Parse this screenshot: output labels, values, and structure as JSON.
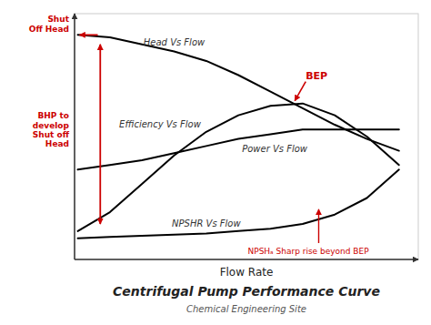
{
  "chart_data": {
    "type": "line",
    "title": "Centrifugal Pump Performance Curve",
    "subtitle": "Chemical Engineering Site",
    "x_label": "Flow Rate",
    "x": [
      0.0,
      0.1,
      0.2,
      0.3,
      0.4,
      0.5,
      0.6,
      0.7,
      0.8,
      0.9,
      1.0
    ],
    "series": [
      {
        "name": "Head Vs Flow",
        "color": "#000000",
        "values": [
          0.93,
          0.92,
          0.89,
          0.86,
          0.82,
          0.76,
          0.69,
          0.62,
          0.55,
          0.49,
          0.44
        ]
      },
      {
        "name": "Efficiency Vs Flow",
        "color": "#000000",
        "values": [
          0.1,
          0.18,
          0.3,
          0.42,
          0.52,
          0.59,
          0.63,
          0.64,
          0.59,
          0.5,
          0.38
        ]
      },
      {
        "name": "Power Vs Flow",
        "color": "#000000",
        "values": [
          0.36,
          0.38,
          0.4,
          0.43,
          0.46,
          0.49,
          0.51,
          0.53,
          0.53,
          0.53,
          0.53
        ]
      },
      {
        "name": "NPSHR Vs Flow",
        "color": "#000000",
        "values": [
          0.07,
          0.075,
          0.08,
          0.085,
          0.09,
          0.1,
          0.11,
          0.13,
          0.17,
          0.24,
          0.36
        ]
      }
    ],
    "annotations": [
      {
        "text": "BEP",
        "x": 0.67,
        "y": 0.64,
        "color": "#cc0000"
      },
      {
        "text": "NPSHₐ Sharp rise beyond BEP",
        "x": 0.75,
        "y": 0.2,
        "color": "#cc0000"
      },
      {
        "text": "Shut\nOff Head",
        "x": 0.0,
        "y": 0.93,
        "color": "#cc0000"
      },
      {
        "text": "BHP to\ndevelop\nShut off\nHead",
        "x": 0.07,
        "y": [
          0.13,
          0.89
        ],
        "color": "#cc0000"
      }
    ],
    "xlim": [
      -0.01,
      1.06
    ],
    "ylim": [
      -0.02,
      1.02
    ],
    "xticks": [],
    "yticks": [],
    "tick_labels": false,
    "grid": false
  }
}
